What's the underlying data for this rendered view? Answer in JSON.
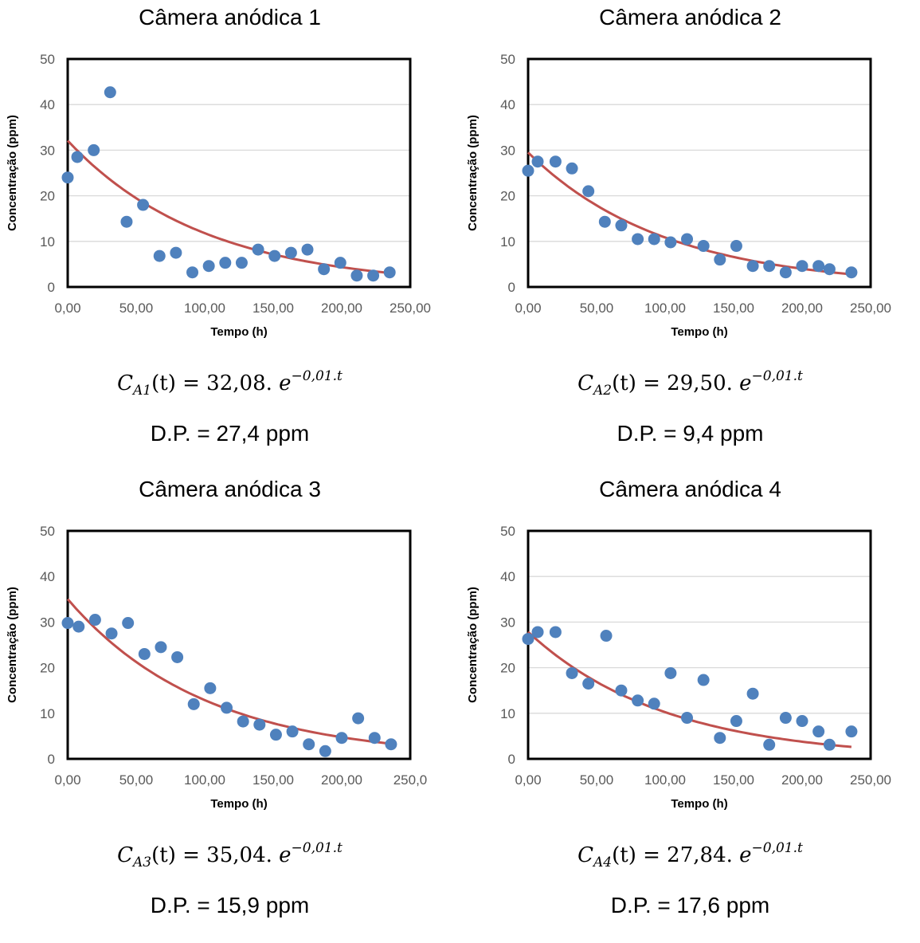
{
  "chart_data": [
    {
      "type": "scatter",
      "title": "Câmera anódica 1",
      "xlabel": "Tempo (h)",
      "ylabel": "Concentração (ppm)",
      "xlim": [
        0,
        250
      ],
      "ylim": [
        0,
        50
      ],
      "x_ticks": [
        "0,00",
        "50,00",
        "100,00",
        "150,00",
        "200,00",
        "250,00"
      ],
      "y_ticks": [
        "0",
        "10",
        "20",
        "30",
        "40",
        "50"
      ],
      "grid": true,
      "points": {
        "x": [
          0,
          7,
          19,
          31,
          43,
          55,
          67,
          79,
          91,
          103,
          115,
          127,
          139,
          151,
          163,
          175,
          187,
          199,
          211,
          223,
          235
        ],
        "y": [
          24,
          28.5,
          30,
          42.7,
          14.3,
          18,
          6.8,
          7.5,
          3.2,
          4.6,
          5.3,
          5.3,
          8.2,
          6.8,
          7.5,
          8.2,
          3.9,
          5.3,
          2.5,
          2.5,
          3.2
        ]
      },
      "fit": {
        "a": 32.08,
        "b": -0.01
      },
      "equation": {
        "sym": "C",
        "sub": "A1",
        "arg": "(t) = ",
        "coef": "32,08.",
        "base": "e",
        "exp": "−0,01.t"
      },
      "dp": "D.P. = 27,4 ppm",
      "colors": {
        "points": "#4F81BD",
        "fit": "#C0504D",
        "grid": "#D9D9D9"
      }
    },
    {
      "type": "scatter",
      "title": "Câmera anódica 2",
      "xlabel": "Tempo (h)",
      "ylabel": "Concentração (ppm)",
      "xlim": [
        0,
        250
      ],
      "ylim": [
        0,
        50
      ],
      "x_ticks": [
        "0,00",
        "50,00",
        "100,00",
        "150,00",
        "200,00",
        "250,00"
      ],
      "y_ticks": [
        "0",
        "10",
        "20",
        "30",
        "40",
        "50"
      ],
      "grid": true,
      "points": {
        "x": [
          0,
          7,
          20,
          32,
          44,
          56,
          68,
          80,
          92,
          104,
          116,
          128,
          140,
          152,
          164,
          176,
          188,
          200,
          212,
          220,
          236
        ],
        "y": [
          25.5,
          27.5,
          27.5,
          26,
          21,
          14.3,
          13.5,
          10.5,
          10.5,
          9.8,
          10.5,
          9,
          6,
          9,
          4.6,
          4.6,
          3.2,
          4.6,
          4.6,
          3.9,
          3.2
        ]
      },
      "fit": {
        "a": 29.5,
        "b": -0.01
      },
      "equation": {
        "sym": "C",
        "sub": "A2",
        "arg": "(t) = ",
        "coef": "29,50.",
        "base": "e",
        "exp": "−0,01.t"
      },
      "dp": "D.P. = 9,4 ppm",
      "colors": {
        "points": "#4F81BD",
        "fit": "#C0504D",
        "grid": "#D9D9D9"
      }
    },
    {
      "type": "scatter",
      "title": "Câmera anódica 3",
      "xlabel": "Tempo (h)",
      "ylabel": "Concentração (ppm)",
      "xlim": [
        0,
        250
      ],
      "ylim": [
        0,
        50
      ],
      "x_ticks": [
        "0,00",
        "50,00",
        "100,00",
        "150,00",
        "200,00",
        "250,0"
      ],
      "y_ticks": [
        "0",
        "10",
        "20",
        "30",
        "40",
        "50"
      ],
      "grid": false,
      "points": {
        "x": [
          0,
          8,
          20,
          32,
          44,
          56,
          68,
          80,
          92,
          104,
          116,
          128,
          140,
          152,
          164,
          176,
          188,
          200,
          212,
          224,
          236
        ],
        "y": [
          29.8,
          29,
          30.5,
          27.5,
          29.8,
          23,
          24.5,
          22.3,
          12,
          15.5,
          11.2,
          8.2,
          7.5,
          5.3,
          6,
          3.2,
          1.7,
          4.6,
          8.9,
          4.6,
          3.2
        ]
      },
      "fit": {
        "a": 35.04,
        "b": -0.01
      },
      "equation": {
        "sym": "C",
        "sub": "A3",
        "arg": "(t) = ",
        "coef": "35,04.",
        "base": "e",
        "exp": "−0,01.t"
      },
      "dp": "D.P. = 15,9 ppm",
      "colors": {
        "points": "#4F81BD",
        "fit": "#C0504D",
        "grid": "#D9D9D9"
      }
    },
    {
      "type": "scatter",
      "title": "Câmera anódica 4",
      "xlabel": "Tempo (h)",
      "ylabel": "Concentração (ppm)",
      "xlim": [
        0,
        250
      ],
      "ylim": [
        0,
        50
      ],
      "x_ticks": [
        "0,00",
        "50,00",
        "100,00",
        "150,00",
        "200,00",
        "250,00"
      ],
      "y_ticks": [
        "0",
        "10",
        "20",
        "30",
        "40",
        "50"
      ],
      "grid": true,
      "points": {
        "x": [
          0,
          7,
          20,
          32,
          44,
          57,
          68,
          80,
          92,
          104,
          116,
          128,
          140,
          152,
          164,
          176,
          188,
          200,
          212,
          220,
          236
        ],
        "y": [
          26.3,
          27.8,
          27.8,
          18.8,
          16.5,
          27,
          15,
          12.8,
          12.1,
          18.8,
          9,
          17.3,
          4.6,
          8.3,
          14.3,
          3.1,
          9,
          8.3,
          6,
          3.1,
          6
        ]
      },
      "fit": {
        "a": 27.84,
        "b": -0.01
      },
      "equation": {
        "sym": "C",
        "sub": "A4",
        "arg": "(t) = ",
        "coef": "27,84.",
        "base": "e",
        "exp": "−0,01.t"
      },
      "dp": "D.P. = 17,6 ppm",
      "colors": {
        "points": "#4F81BD",
        "fit": "#C0504D",
        "grid": "#D9D9D9"
      }
    }
  ]
}
